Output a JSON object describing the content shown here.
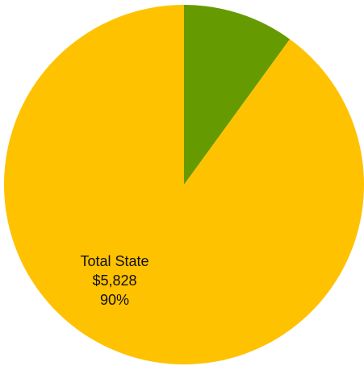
{
  "chart_data": {
    "type": "pie",
    "title": "",
    "start_angle_deg": 0,
    "direction": "clockwise",
    "slices": [
      {
        "label": "",
        "value": 10,
        "color": "#659b00"
      },
      {
        "label": "Total State",
        "amount_text": "$5,828",
        "percent_text": "90%",
        "value": 90,
        "color": "#fec200"
      }
    ]
  }
}
